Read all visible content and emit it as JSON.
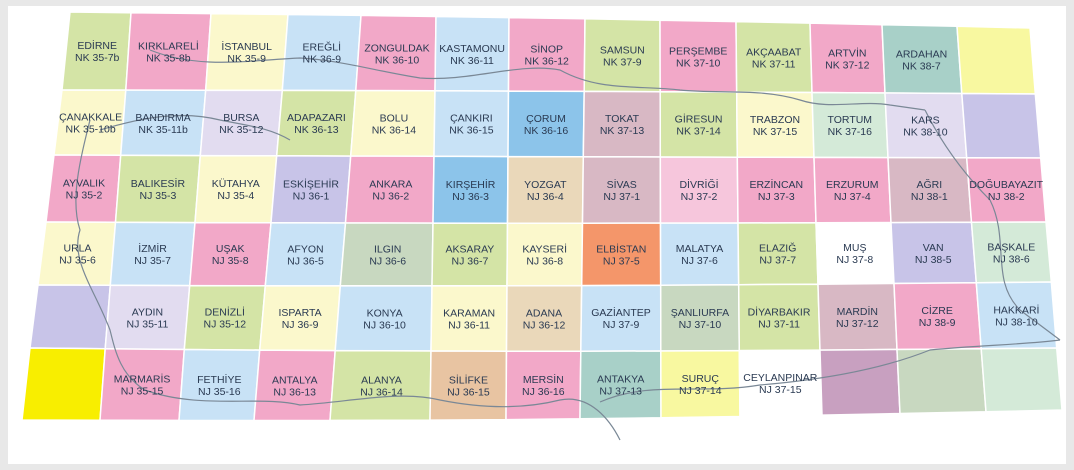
{
  "map": {
    "colors": {
      "green": "#d4e4a6",
      "pink": "#f2a8c8",
      "pinklight": "#f6c6dc",
      "cream": "#fbf8cc",
      "blue": "#c8e2f6",
      "blue2": "#8cc4ea",
      "lavender": "#c8c4e8",
      "lavlight": "#e2dcf0",
      "mauve": "#d8b8c4",
      "mauvedark": "#c8a0c0",
      "peach": "#f4cca4",
      "tan": "#ead8ba",
      "orange": "#f4966a",
      "teal": "#a8d0c8",
      "mint": "#d4ead8",
      "gray": "#dcdcdc",
      "sand": "#e8c4a2",
      "yellow": "#f8f8a0",
      "yellowbright": "#f8ee00",
      "lilacgray": "#d8d8e8",
      "graygreen": "#c8d8c0"
    },
    "rows": [
      [
        {
          "name": "EDİRNE",
          "code": "NK 35-7b",
          "color": "green"
        },
        {
          "name": "KIRKLARELİ",
          "code": "NK 35-8b",
          "color": "pink"
        },
        {
          "name": "İSTANBUL",
          "code": "NK 35-9",
          "color": "cream"
        },
        {
          "name": "EREĞLİ",
          "code": "NK 36-9",
          "color": "blue"
        },
        {
          "name": "ZONGULDAK",
          "code": "NK 36-10",
          "color": "pink"
        },
        {
          "name": "KASTAMONU",
          "code": "NK 36-11",
          "color": "blue"
        },
        {
          "name": "SİNOP",
          "code": "NK 36-12",
          "color": "pink"
        },
        {
          "name": "SAMSUN",
          "code": "NK 37-9",
          "color": "green"
        },
        {
          "name": "PERŞEMBE",
          "code": "NK 37-10",
          "color": "pink"
        },
        {
          "name": "AKÇAABAT",
          "code": "NK 37-11",
          "color": "green"
        },
        {
          "name": "ARTVİN",
          "code": "NK 37-12",
          "color": "pink"
        },
        {
          "name": "ARDAHAN",
          "code": "NK 38-7",
          "color": "teal"
        },
        {
          "name": "",
          "code": "",
          "color": "yellow"
        }
      ],
      [
        {
          "name": "ÇANAKKALE",
          "code": "NK 35-10b",
          "color": "cream"
        },
        {
          "name": "BANDIRMA",
          "code": "NK 35-11b",
          "color": "blue"
        },
        {
          "name": "BURSA",
          "code": "NK 35-12",
          "color": "lavlight"
        },
        {
          "name": "ADAPAZARI",
          "code": "NK 36-13",
          "color": "green"
        },
        {
          "name": "BOLU",
          "code": "NK 36-14",
          "color": "cream"
        },
        {
          "name": "ÇANKIRI",
          "code": "NK 36-15",
          "color": "blue"
        },
        {
          "name": "ÇORUM",
          "code": "NK 36-16",
          "color": "blue2"
        },
        {
          "name": "TOKAT",
          "code": "NK 37-13",
          "color": "mauve"
        },
        {
          "name": "GİRESUN",
          "code": "NK 37-14",
          "color": "green"
        },
        {
          "name": "TRABZON",
          "code": "NK 37-15",
          "color": "cream"
        },
        {
          "name": "TORTUM",
          "code": "NK 37-16",
          "color": "mint"
        },
        {
          "name": "KARS",
          "code": "NK 38-10",
          "color": "lavlight"
        },
        {
          "name": "",
          "code": "",
          "color": "lavender"
        }
      ],
      [
        {
          "name": "AYVALIK",
          "code": "NJ 35-2",
          "color": "pink"
        },
        {
          "name": "BALIKESİR",
          "code": "NJ 35-3",
          "color": "green"
        },
        {
          "name": "KÜTAHYA",
          "code": "NJ 35-4",
          "color": "cream"
        },
        {
          "name": "ESKİŞEHİR",
          "code": "NJ 36-1",
          "color": "lavender"
        },
        {
          "name": "ANKARA",
          "code": "NJ 36-2",
          "color": "pink"
        },
        {
          "name": "KIRŞEHİR",
          "code": "NJ 36-3",
          "color": "blue2"
        },
        {
          "name": "YOZGAT",
          "code": "NJ 36-4",
          "color": "tan"
        },
        {
          "name": "SİVAS",
          "code": "NJ 37-1",
          "color": "mauve"
        },
        {
          "name": "DİVRİĞİ",
          "code": "NJ 37-2",
          "color": "pinklight"
        },
        {
          "name": "ERZİNCAN",
          "code": "NJ 37-3",
          "color": "pink"
        },
        {
          "name": "ERZURUM",
          "code": "NJ 37-4",
          "color": "pink"
        },
        {
          "name": "AĞRI",
          "code": "NJ 38-1",
          "color": "mauve"
        },
        {
          "name": "DOĞUBAYAZIT",
          "code": "NJ 38-2",
          "color": "pink"
        }
      ],
      [
        {
          "name": "URLA",
          "code": "NJ 35-6",
          "color": "cream"
        },
        {
          "name": "İZMİR",
          "code": "NJ 35-7",
          "color": "blue"
        },
        {
          "name": "UŞAK",
          "code": "NJ 35-8",
          "color": "pink"
        },
        {
          "name": "AFYON",
          "code": "NJ 36-5",
          "color": "blue"
        },
        {
          "name": "ILGIN",
          "code": "NJ 36-6",
          "color": "graygreen"
        },
        {
          "name": "AKSARAY",
          "code": "NJ 36-7",
          "color": "green"
        },
        {
          "name": "KAYSERİ",
          "code": "NJ 36-8",
          "color": "cream"
        },
        {
          "name": "ELBİSTAN",
          "code": "NJ 37-5",
          "color": "orange"
        },
        {
          "name": "MALATYA",
          "code": "NJ 37-6",
          "color": "blue"
        },
        {
          "name": "ELAZIĞ",
          "code": "NJ 37-7",
          "color": "green"
        },
        {
          "name": "MUŞ",
          "code": "NJ 37-8",
          "color": "white"
        },
        {
          "name": "VAN",
          "code": "NJ 38-5",
          "color": "lavender"
        },
        {
          "name": "BAŞKALE",
          "code": "NJ 38-6",
          "color": "mint"
        }
      ],
      [
        {
          "name": "",
          "code": "",
          "color": "lavender"
        },
        {
          "name": "AYDIN",
          "code": "NJ 35-11",
          "color": "lavlight"
        },
        {
          "name": "DENİZLİ",
          "code": "NJ 35-12",
          "color": "green"
        },
        {
          "name": "ISPARTA",
          "code": "NJ 36-9",
          "color": "cream"
        },
        {
          "name": "KONYA",
          "code": "NJ 36-10",
          "color": "blue"
        },
        {
          "name": "KARAMAN",
          "code": "NJ 36-11",
          "color": "cream"
        },
        {
          "name": "ADANA",
          "code": "NJ 36-12",
          "color": "tan"
        },
        {
          "name": "GAZİANTEP",
          "code": "NJ 37-9",
          "color": "blue"
        },
        {
          "name": "ŞANLIURFA",
          "code": "NJ 37-10",
          "color": "graygreen"
        },
        {
          "name": "DİYARBAKIR",
          "code": "NJ 37-11",
          "color": "green"
        },
        {
          "name": "MARDİN",
          "code": "NJ 37-12",
          "color": "mauve"
        },
        {
          "name": "CİZRE",
          "code": "NJ 38-9",
          "color": "pink"
        },
        {
          "name": "HAKKARİ",
          "code": "NJ 38-10",
          "color": "blue"
        }
      ],
      [
        {
          "name": "",
          "code": "",
          "color": "yellowbright"
        },
        {
          "name": "MARMARİS",
          "code": "NJ 35-15",
          "color": "pink"
        },
        {
          "name": "FETHİYE",
          "code": "NJ 35-16",
          "color": "blue"
        },
        {
          "name": "ANTALYA",
          "code": "NJ 36-13",
          "color": "pink"
        },
        {
          "name": "ALANYA",
          "code": "NJ 36-14",
          "color": "green"
        },
        {
          "name": "SİLİFKE",
          "code": "NJ 36-15",
          "color": "sand"
        },
        {
          "name": "MERSİN",
          "code": "NJ 36-16",
          "color": "pink"
        },
        {
          "name": "ANTAKYA",
          "code": "NJ 37-13",
          "color": "teal"
        },
        {
          "name": "SURUÇ",
          "code": "NJ 37-14",
          "color": "yellow"
        },
        {
          "name": "CEYLANPINAR",
          "code": "NJ 37-15",
          "color": "white"
        },
        {
          "name": "",
          "code": "",
          "color": "mauvedark"
        },
        {
          "name": "",
          "code": "",
          "color": "graygreen"
        },
        {
          "name": "",
          "code": "",
          "color": "mint"
        }
      ]
    ]
  }
}
